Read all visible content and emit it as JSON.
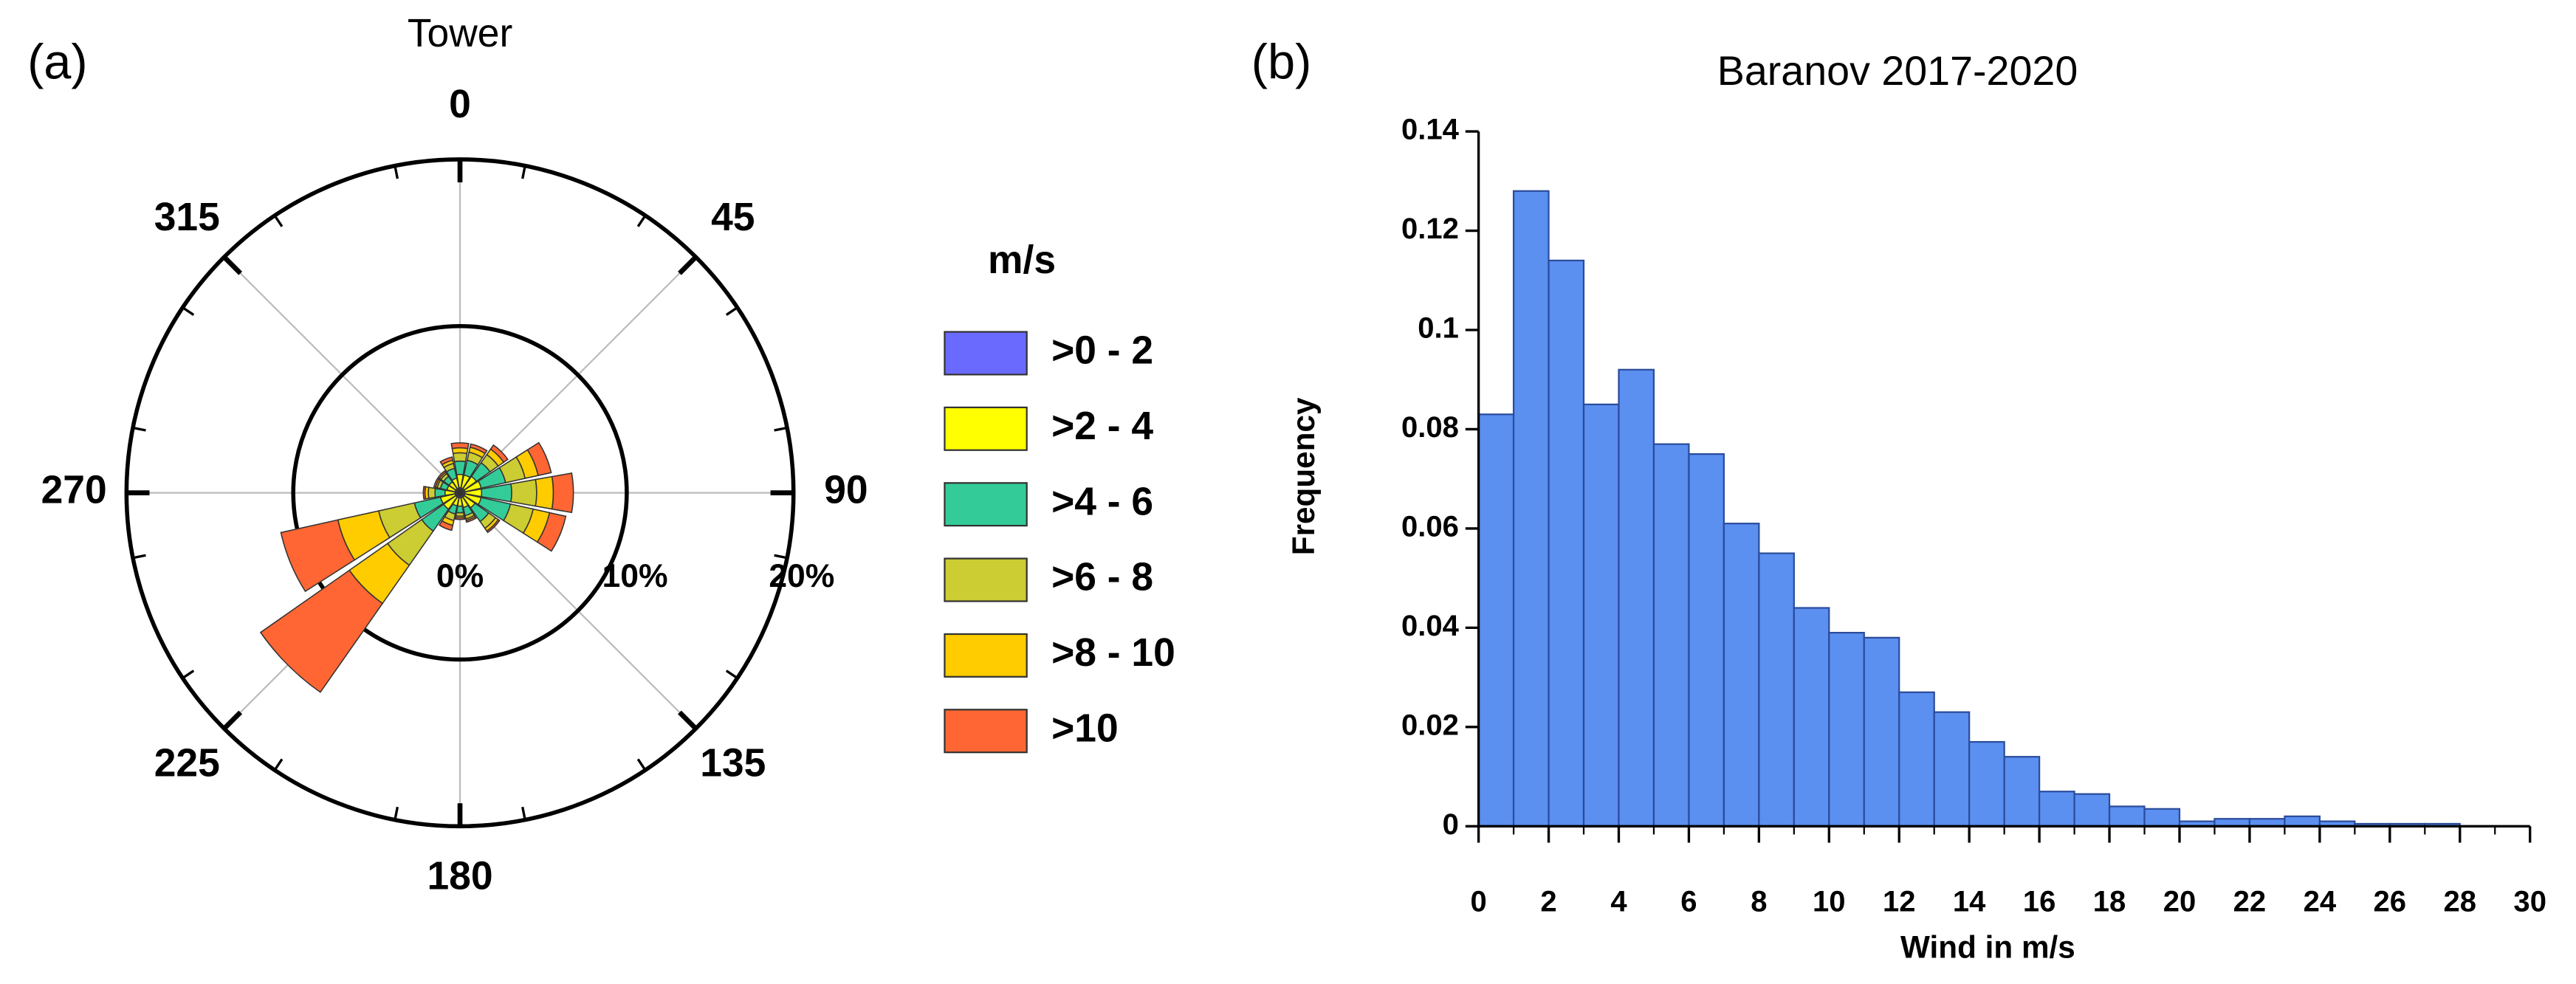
{
  "chart_data": [
    {
      "type": "windrose",
      "title": "Tower",
      "panel_label": "(a)",
      "legend_title": "m/s",
      "x": [
        0,
        22.5,
        45,
        67.5,
        90,
        112.5,
        135,
        157.5,
        180,
        202.5,
        225,
        247.5,
        270,
        292.5,
        315,
        337.5
      ],
      "angle_ticks": [
        0,
        45,
        90,
        135,
        180,
        225,
        270,
        315
      ],
      "rlim": [
        0,
        20
      ],
      "rticks": [
        {
          "value": 0,
          "label": "0%"
        },
        {
          "value": 10,
          "label": "10%"
        },
        {
          "value": 20,
          "label": "20%"
        }
      ],
      "series": [
        {
          "name": ">0 - 2",
          "color": "#6a6aff",
          "values": [
            0.3,
            0.3,
            0.3,
            0.3,
            0.3,
            0.3,
            0.3,
            0.3,
            0.3,
            0.3,
            0.3,
            0.3,
            0.3,
            0.3,
            0.3,
            0.3
          ]
        },
        {
          "name": ">2 - 4",
          "color": "#ffff00",
          "values": [
            0.8,
            0.8,
            0.9,
            1.0,
            1.0,
            1.0,
            0.8,
            0.6,
            0.5,
            0.5,
            0.9,
            0.9,
            0.6,
            0.5,
            0.5,
            0.6
          ]
        },
        {
          "name": ">4 - 6",
          "color": "#33cc99",
          "values": [
            0.8,
            0.9,
            1.0,
            1.5,
            1.8,
            1.8,
            1.0,
            0.5,
            0.4,
            0.5,
            1.6,
            1.6,
            0.6,
            0.4,
            0.4,
            0.6
          ]
        },
        {
          "name": ">6 - 8",
          "color": "#cccc33",
          "values": [
            0.5,
            0.5,
            0.6,
            1.2,
            1.5,
            1.4,
            0.5,
            0.2,
            0.2,
            0.4,
            2.5,
            2.2,
            0.4,
            0.2,
            0.2,
            0.3
          ]
        },
        {
          "name": ">8 - 10",
          "color": "#ffcc00",
          "values": [
            0.3,
            0.3,
            0.4,
            0.8,
            1.0,
            1.0,
            0.2,
            0.1,
            0.1,
            0.3,
            2.8,
            2.5,
            0.2,
            0.1,
            0.1,
            0.2
          ]
        },
        {
          "name": ">10",
          "color": "#ff6633",
          "values": [
            0.3,
            0.2,
            0.3,
            0.8,
            1.2,
            1.0,
            0.1,
            0.1,
            0.1,
            0.3,
            6.5,
            3.5,
            0.1,
            0.1,
            0.1,
            0.2
          ]
        }
      ]
    },
    {
      "type": "histogram",
      "title": "Baranov 2017-2020",
      "panel_label": "(b)",
      "x_label": "Wind in m/s",
      "y_label": "Frequency",
      "color": "#5b8ff0",
      "bins": [
        0,
        1,
        2,
        3,
        4,
        5,
        6,
        7,
        8,
        9,
        10,
        11,
        12,
        13,
        14,
        15,
        16,
        17,
        18,
        19,
        20,
        21,
        22,
        23,
        24,
        25,
        26,
        27,
        28,
        29,
        30
      ],
      "values": [
        0.083,
        0.128,
        0.114,
        0.085,
        0.092,
        0.077,
        0.075,
        0.061,
        0.055,
        0.044,
        0.039,
        0.038,
        0.027,
        0.023,
        0.017,
        0.014,
        0.007,
        0.0065,
        0.004,
        0.0035,
        0.001,
        0.0015,
        0.0015,
        0.002,
        0.001,
        0.0005,
        0.0005,
        0.0005,
        0,
        0
      ],
      "xlim": [
        0,
        30
      ],
      "xticks": [
        0,
        2,
        4,
        6,
        8,
        10,
        12,
        14,
        16,
        18,
        20,
        22,
        24,
        26,
        28,
        30
      ],
      "ylim": [
        0,
        0.14
      ],
      "yticks": [
        0,
        0.02,
        0.04,
        0.06,
        0.08,
        0.1,
        0.12,
        0.14
      ]
    }
  ]
}
